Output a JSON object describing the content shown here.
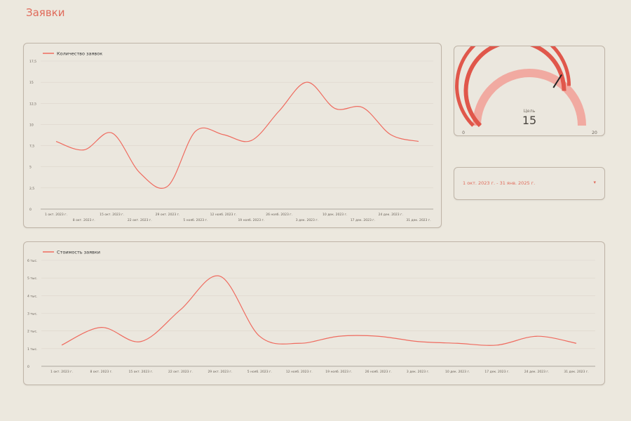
{
  "page": {
    "title": "Заявки"
  },
  "date_range": {
    "label": "1 окт. 2023 г. - 31 янв. 2025 г.",
    "arrow": "▾"
  },
  "gauge": {
    "label": "Цель",
    "value": 15,
    "min": 0,
    "max": 20,
    "min_label": "0",
    "max_label": "20",
    "fraction": 0.75,
    "target_fraction": 0.68,
    "colors": {
      "fill": "#e0574b",
      "track": "#f1aaa1",
      "marker": "#222222"
    }
  },
  "colors": {
    "accent": "#e06a5a",
    "line": "#ef6b5f",
    "grid": "#dcd6cb",
    "axis": "#9a9288",
    "text": "#333333"
  },
  "chart_data": [
    {
      "type": "line",
      "legend": "Количество заявок",
      "ylim": [
        0,
        17.5
      ],
      "y_ticks": [
        0,
        2.5,
        5,
        7.5,
        10,
        12.5,
        15,
        17.5
      ],
      "y_tick_labels": [
        "0",
        "2,5",
        "5",
        "7,5",
        "10",
        "12,5",
        "15",
        "17,5"
      ],
      "x_labels": [
        "1 окт. 2023 г.",
        "8 окт. 2023 г.",
        "15 окт. 2023 г.",
        "22 окт. 2023 г.",
        "29 окт. 2023 г.",
        "5 нояб. 2023 г.",
        "12 нояб. 2023 г.",
        "19 нояб. 2023 г.",
        "26 нояб. 2023 г.",
        "3 дек. 2023 г.",
        "10 дек. 2023 г.",
        "17 дек. 2023 г.",
        "24 дек. 2023 г.",
        "31 дек. 2023 г."
      ],
      "series": [
        {
          "values": [
            8,
            7,
            9,
            4.3,
            2.7,
            9.2,
            8.8,
            8.1,
            11.6,
            15,
            11.9,
            12,
            8.8,
            8
          ]
        }
      ]
    },
    {
      "type": "line",
      "legend": "Стоимость заявки",
      "ylim": [
        0,
        6
      ],
      "y_ticks": [
        0,
        1,
        2,
        3,
        4,
        5,
        6
      ],
      "y_tick_labels": [
        "0",
        "1 тыс.",
        "2 тыс.",
        "3 тыс.",
        "4 тыс.",
        "5 тыс.",
        "6 тыс."
      ],
      "x_labels": [
        "1 окт. 2023 г.",
        "8 окт. 2023 г.",
        "15 окт. 2023 г.",
        "22 окт. 2023 г.",
        "29 окт. 2023 г.",
        "5 нояб. 2023 г.",
        "12 нояб. 2023 г.",
        "19 нояб. 2023 г.",
        "26 нояб. 2023 г.",
        "3 дек. 2023 г.",
        "10 дек. 2023 г.",
        "17 дек. 2023 г.",
        "24 дек. 2023 г.",
        "31 дек. 2023 г."
      ],
      "series": [
        {
          "values": [
            1.2,
            2.2,
            1.4,
            3.2,
            5.1,
            1.7,
            1.3,
            1.7,
            1.7,
            1.4,
            1.3,
            1.2,
            1.7,
            1.3
          ]
        }
      ]
    }
  ]
}
